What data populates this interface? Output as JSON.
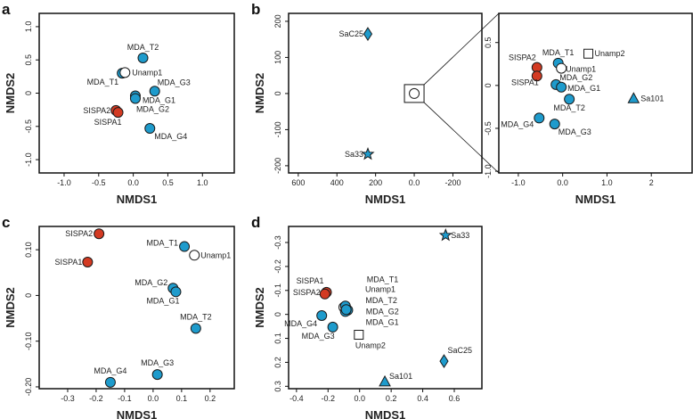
{
  "colors": {
    "blue": "#1e9bcc",
    "red": "#d33a22",
    "white": "#ffffff",
    "outline": "#1a1a1a"
  },
  "chart_data": [
    {
      "id": "a",
      "type": "scatter",
      "xlabel": "NMDS1",
      "ylabel": "NMDS2",
      "xlim": [
        -1.36,
        1.46
      ],
      "ylim": [
        -1.2,
        1.2
      ],
      "xticks": [
        -1.0,
        -0.5,
        0.0,
        0.5,
        1.0
      ],
      "xtick_labels": [
        "-1.0",
        "-0.5",
        "0.0",
        "0.5",
        "1.0"
      ],
      "yticks": [
        -1.0,
        -0.5,
        0,
        0.5,
        1.0
      ],
      "ytick_labels": [
        "-1.0",
        "-0.5",
        "0",
        "0.5",
        "1.0"
      ],
      "points": [
        {
          "label": "MDA_T2",
          "x": 0.14,
          "y": 0.53,
          "shape": "circle",
          "color": "blue"
        },
        {
          "label": "MDA_T1",
          "x": -0.16,
          "y": 0.3,
          "shape": "circle",
          "color": "blue"
        },
        {
          "label": "Unamp1",
          "x": -0.12,
          "y": 0.31,
          "shape": "circle",
          "color": "white"
        },
        {
          "label": "MDA_G3",
          "x": 0.31,
          "y": 0.03,
          "shape": "circle",
          "color": "blue"
        },
        {
          "label": "MDA_G1",
          "x": 0.03,
          "y": -0.04,
          "shape": "circle",
          "color": "blue"
        },
        {
          "label": "MDA_G2",
          "x": 0.03,
          "y": -0.08,
          "shape": "circle",
          "color": "blue"
        },
        {
          "label": "SISPA2",
          "x": -0.25,
          "y": -0.26,
          "shape": "circle",
          "color": "red"
        },
        {
          "label": "SISPA1",
          "x": -0.22,
          "y": -0.29,
          "shape": "circle",
          "color": "red"
        },
        {
          "label": "MDA_G4",
          "x": 0.24,
          "y": -0.53,
          "shape": "circle",
          "color": "blue"
        }
      ]
    },
    {
      "id": "b",
      "type": "scatter",
      "xlabel": "NMDS1",
      "ylabel": "NMDS2",
      "xlim": [
        650,
        -350
      ],
      "ylim": [
        -220,
        222
      ],
      "xticks": [
        600,
        400,
        200,
        0,
        -200
      ],
      "xtick_labels": [
        "600",
        "400",
        "200",
        "0.0",
        "-200"
      ],
      "yticks": [
        -200,
        -100,
        0,
        100,
        200
      ],
      "ytick_labels": [
        "-200",
        "-100",
        "0",
        "100",
        "200"
      ],
      "points": [
        {
          "label": "SaC25",
          "x": 240,
          "y": 165,
          "shape": "diamond",
          "color": "blue"
        },
        {
          "label": "Sa33",
          "x": 240,
          "y": -168,
          "shape": "star",
          "color": "blue"
        },
        {
          "label": "",
          "x": 0,
          "y": 0,
          "shape": "circle",
          "color": "white"
        }
      ]
    },
    {
      "id": "b-inset",
      "type": "scatter",
      "xlabel": "NMDS1",
      "ylabel": "",
      "xlim": [
        -1.44,
        2.92
      ],
      "ylim": [
        -1.02,
        0.84
      ],
      "xticks": [
        -1.0,
        0.0,
        1.0,
        2.0
      ],
      "xtick_labels": [
        "-1.0",
        "0.0",
        "1.0",
        "2"
      ],
      "yticks": [
        -1.0,
        -0.5,
        0,
        0.5
      ],
      "ytick_labels": [
        "-1.0",
        "-0.5",
        "0",
        "0.5"
      ],
      "points": [
        {
          "label": "SISPA2",
          "x": -0.58,
          "y": 0.21,
          "shape": "circle",
          "color": "red"
        },
        {
          "label": "SISPA1",
          "x": -0.58,
          "y": 0.11,
          "shape": "circle",
          "color": "red"
        },
        {
          "label": "MDA_T1",
          "x": -0.1,
          "y": 0.26,
          "shape": "circle",
          "color": "blue"
        },
        {
          "label": "Unamp1",
          "x": -0.03,
          "y": 0.2,
          "shape": "circle",
          "color": "white"
        },
        {
          "label": "Unamp2",
          "x": 0.58,
          "y": 0.37,
          "shape": "square",
          "color": "white"
        },
        {
          "label": "MDA_G2",
          "x": -0.15,
          "y": 0.01,
          "shape": "circle",
          "color": "blue"
        },
        {
          "label": "MDA_G1",
          "x": -0.03,
          "y": -0.02,
          "shape": "circle",
          "color": "blue"
        },
        {
          "label": "MDA_T2",
          "x": 0.15,
          "y": -0.16,
          "shape": "circle",
          "color": "blue"
        },
        {
          "label": "Sa101",
          "x": 1.6,
          "y": -0.15,
          "shape": "triangle",
          "color": "blue"
        },
        {
          "label": "MDA_G4",
          "x": -0.53,
          "y": -0.38,
          "shape": "circle",
          "color": "blue"
        },
        {
          "label": "MDA_G3",
          "x": -0.18,
          "y": -0.45,
          "shape": "circle",
          "color": "blue"
        }
      ]
    },
    {
      "id": "c",
      "type": "scatter",
      "xlabel": "NMDS1",
      "ylabel": "NMDS2",
      "xlim": [
        -0.4,
        0.285
      ],
      "ylim": [
        -0.204,
        0.151
      ],
      "xticks": [
        -0.3,
        -0.2,
        -0.1,
        0.0,
        0.1,
        0.2
      ],
      "xtick_labels": [
        "-0.3",
        "-0.2",
        "-0.1",
        "0.0",
        "0.1",
        "0.2"
      ],
      "yticks": [
        -0.2,
        -0.1,
        0,
        0.1
      ],
      "ytick_labels": [
        "-0.20",
        "-0.10",
        "0",
        "0.10"
      ],
      "points": [
        {
          "label": "SISPA2",
          "x": -0.19,
          "y": 0.135,
          "shape": "circle",
          "color": "red"
        },
        {
          "label": "SISPA1",
          "x": -0.23,
          "y": 0.073,
          "shape": "circle",
          "color": "red"
        },
        {
          "label": "MDA_T1",
          "x": 0.11,
          "y": 0.107,
          "shape": "circle",
          "color": "blue"
        },
        {
          "label": "Unamp1",
          "x": 0.145,
          "y": 0.088,
          "shape": "circle",
          "color": "white"
        },
        {
          "label": "MDA_G2",
          "x": 0.07,
          "y": 0.016,
          "shape": "circle",
          "color": "blue"
        },
        {
          "label": "MDA_G1",
          "x": 0.08,
          "y": 0.008,
          "shape": "circle",
          "color": "blue"
        },
        {
          "label": "MDA_T2",
          "x": 0.15,
          "y": -0.072,
          "shape": "circle",
          "color": "blue"
        },
        {
          "label": "MDA_G3",
          "x": 0.015,
          "y": -0.173,
          "shape": "circle",
          "color": "blue"
        },
        {
          "label": "MDA_G4",
          "x": -0.15,
          "y": -0.19,
          "shape": "circle",
          "color": "blue"
        }
      ]
    },
    {
      "id": "d",
      "type": "scatter",
      "xlabel": "NMDS1",
      "ylabel": "NMDS2",
      "xlim": [
        -0.45,
        0.775
      ],
      "ylim": [
        0.31,
        -0.367
      ],
      "xticks": [
        -0.4,
        -0.2,
        0.0,
        0.2,
        0.4,
        0.6
      ],
      "xtick_labels": [
        "-0.4",
        "-0.2",
        "0.0",
        "0.2",
        "0.4",
        "0.6"
      ],
      "yticks": [
        0.3,
        0.2,
        0.1,
        0,
        -0.1,
        -0.2,
        -0.3
      ],
      "ytick_labels": [
        "0.3",
        "0.2",
        "0.1",
        "0",
        "-0.1",
        "-0.2",
        "-0.3"
      ],
      "points": [
        {
          "label": "Sa33",
          "x": 0.545,
          "y": -0.33,
          "shape": "star",
          "color": "blue"
        },
        {
          "label": "SISPA1",
          "x": -0.21,
          "y": -0.092,
          "shape": "circle",
          "color": "red"
        },
        {
          "label": "SISPA2",
          "x": -0.22,
          "y": -0.085,
          "shape": "circle",
          "color": "red"
        },
        {
          "label": "Unamp1",
          "x": -0.1,
          "y": -0.03,
          "shape": "circle",
          "color": "white"
        },
        {
          "label": "MDA_T1",
          "x": -0.09,
          "y": -0.035,
          "shape": "circle",
          "color": "blue"
        },
        {
          "label": "MDA_T2",
          "x": -0.075,
          "y": -0.018,
          "shape": "circle",
          "color": "blue"
        },
        {
          "label": "MDA_G2",
          "x": -0.09,
          "y": -0.012,
          "shape": "circle",
          "color": "blue"
        },
        {
          "label": "MDA_G1",
          "x": -0.085,
          "y": -0.02,
          "shape": "circle",
          "color": "blue"
        },
        {
          "label": "MDA_G4",
          "x": -0.24,
          "y": 0.005,
          "shape": "circle",
          "color": "blue"
        },
        {
          "label": "MDA_G3",
          "x": -0.17,
          "y": 0.053,
          "shape": "circle",
          "color": "blue"
        },
        {
          "label": "Unamp2",
          "x": -0.005,
          "y": 0.085,
          "shape": "square",
          "color": "white"
        },
        {
          "label": "SaC25",
          "x": 0.535,
          "y": 0.195,
          "shape": "diamond",
          "color": "blue"
        },
        {
          "label": "Sa101",
          "x": 0.16,
          "y": 0.28,
          "shape": "triangle",
          "color": "blue"
        }
      ]
    }
  ],
  "panel_letters": [
    "a",
    "b",
    "c",
    "d"
  ]
}
